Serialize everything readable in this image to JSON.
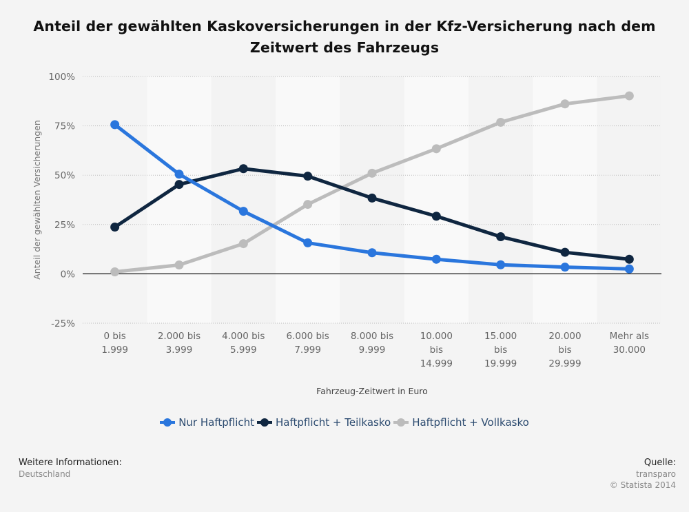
{
  "chart_data": {
    "type": "line",
    "title": "Anteil der gewählten Kaskoversicherungen in der Kfz-Versicherung nach dem Zeitwert des Fahrzeugs",
    "xlabel": "Fahrzeug-Zeitwert in Euro",
    "ylabel": "Anteil der gewählten Versicherungen",
    "categories": [
      [
        "0 bis",
        "1.999"
      ],
      [
        "2.000 bis",
        "3.999"
      ],
      [
        "4.000 bis",
        "5.999"
      ],
      [
        "6.000 bis",
        "7.999"
      ],
      [
        "8.000 bis",
        "9.999"
      ],
      [
        "10.000",
        "bis",
        "14.999"
      ],
      [
        "15.000",
        "bis",
        "19.999"
      ],
      [
        "20.000",
        "bis",
        "29.999"
      ],
      [
        "Mehr als",
        "30.000"
      ]
    ],
    "ylim": [
      -25,
      100
    ],
    "yticks": [
      100,
      75,
      50,
      25,
      0,
      -25
    ],
    "ytick_labels": [
      "100%",
      "75%",
      "50%",
      "25%",
      "0%",
      "-25%"
    ],
    "grid": true,
    "legend_position": "bottom",
    "series": [
      {
        "name": "Nur Haftpflicht",
        "color": "#2a76dd",
        "values": [
          75.6,
          50.5,
          31.7,
          15.7,
          10.7,
          7.4,
          4.6,
          3.4,
          2.5
        ]
      },
      {
        "name": "Haftpflicht + Teilkasko",
        "color": "#0f2640",
        "values": [
          23.7,
          45.3,
          53.3,
          49.5,
          38.4,
          29.2,
          18.8,
          10.9,
          7.4
        ]
      },
      {
        "name": "Haftpflicht + Vollkasko",
        "color": "#bcbcbc",
        "values": [
          1.0,
          4.5,
          15.3,
          35.2,
          51.0,
          63.4,
          76.8,
          86.1,
          90.2
        ]
      }
    ]
  },
  "footer": {
    "info_label": "Weitere Informationen:",
    "info_value": "Deutschland",
    "source_label": "Quelle:",
    "source_value": "transparo",
    "copyright": "© Statista 2014"
  }
}
